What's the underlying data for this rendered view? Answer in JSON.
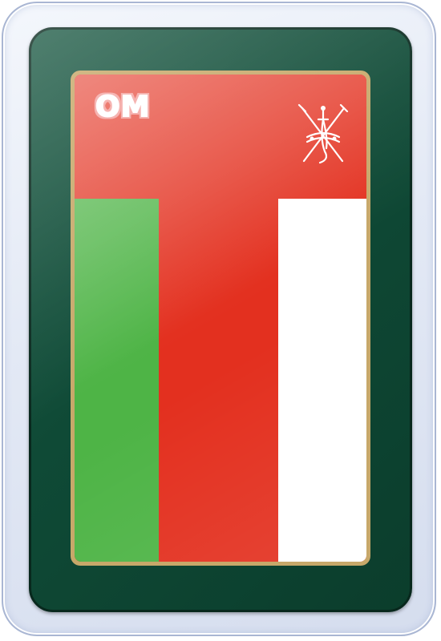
{
  "flag": {
    "code": "OM",
    "emblem_icon": "khanjar-emblem-icon",
    "colors": {
      "red": "#e3301f",
      "green": "#4eb446",
      "white": "#ffffff",
      "panel": "#0f4a36",
      "frame": "#c7a86a"
    }
  }
}
